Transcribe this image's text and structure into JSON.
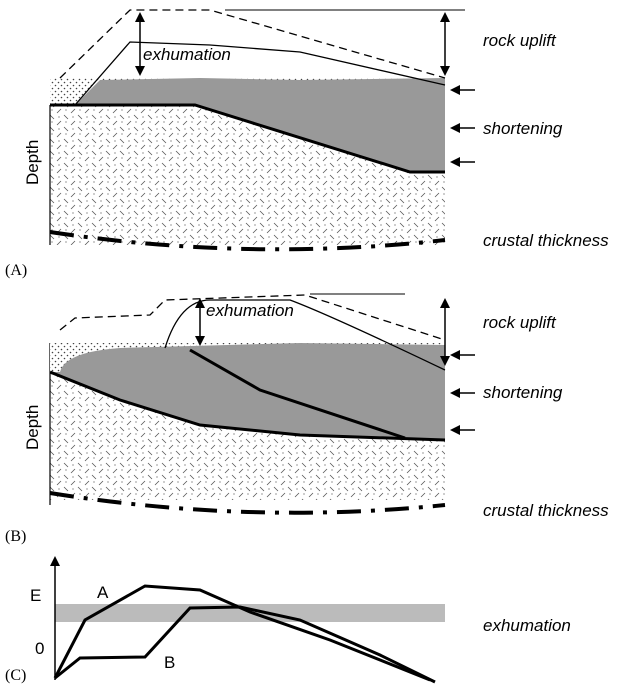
{
  "panels": [
    {
      "label": "(A)",
      "depth": "Depth",
      "exhumation": "exhumation",
      "rock_uplift": "rock uplift",
      "shortening": "shortening",
      "crustal_thickness": "crustal thickness"
    },
    {
      "label": "(B)",
      "depth": "Depth",
      "exhumation": "exhumation",
      "rock_uplift": "rock uplift",
      "shortening": "shortening",
      "crustal_thickness": "crustal thickness"
    }
  ],
  "panel_c": {
    "label": "(C)",
    "y_top": "E",
    "y_zero": "0",
    "curve_a": "A",
    "curve_b": "B",
    "band": "exhumation"
  }
}
